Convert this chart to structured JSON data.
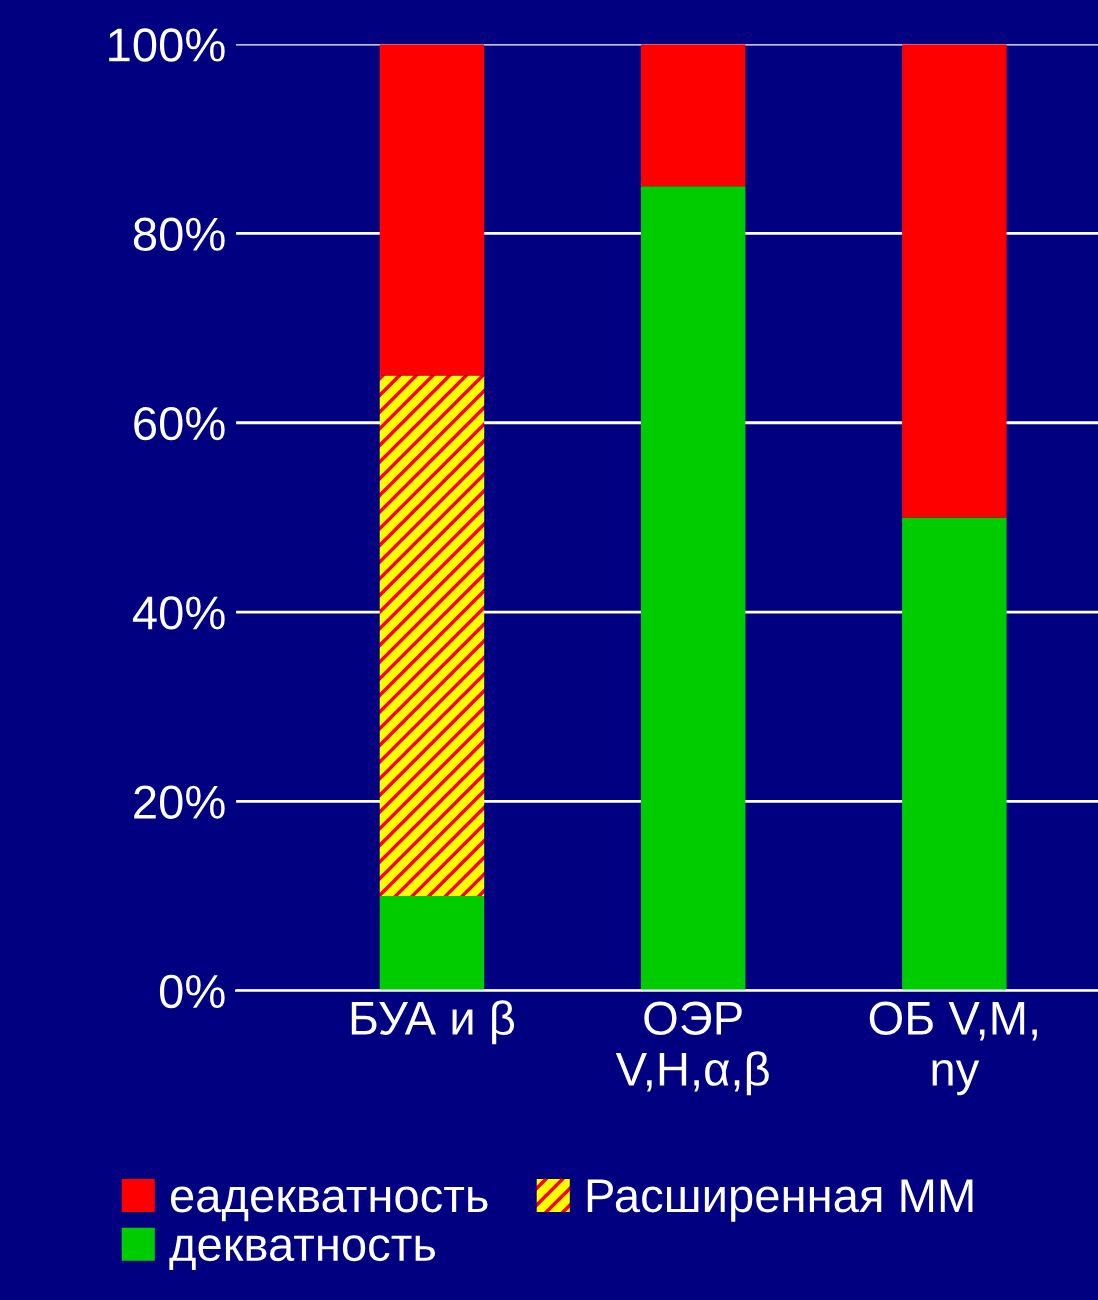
{
  "chart_data": {
    "type": "bar",
    "stacked": true,
    "categories": [
      "БУА и β",
      "ОЭР\nV,H,α,β",
      "ОБ V,M,\nny"
    ],
    "series": [
      {
        "name": "декватность",
        "color": "#00cc00",
        "values": [
          10,
          85,
          50
        ]
      },
      {
        "name": "Расширенная ММ",
        "color": "#ffff00",
        "values": [
          55,
          0,
          0
        ]
      },
      {
        "name": "еадекватность",
        "color": "#ff0000",
        "values": [
          35,
          15,
          50
        ]
      }
    ],
    "ylim": [
      0,
      100
    ],
    "yticks": [
      {
        "value": 0,
        "label": "0%"
      },
      {
        "value": 20,
        "label": "20%"
      },
      {
        "value": 40,
        "label": "40%"
      },
      {
        "value": 60,
        "label": "60%"
      },
      {
        "value": 80,
        "label": "80%"
      },
      {
        "value": 100,
        "label": "100%"
      }
    ],
    "grid": "y",
    "legend": "bottom"
  }
}
